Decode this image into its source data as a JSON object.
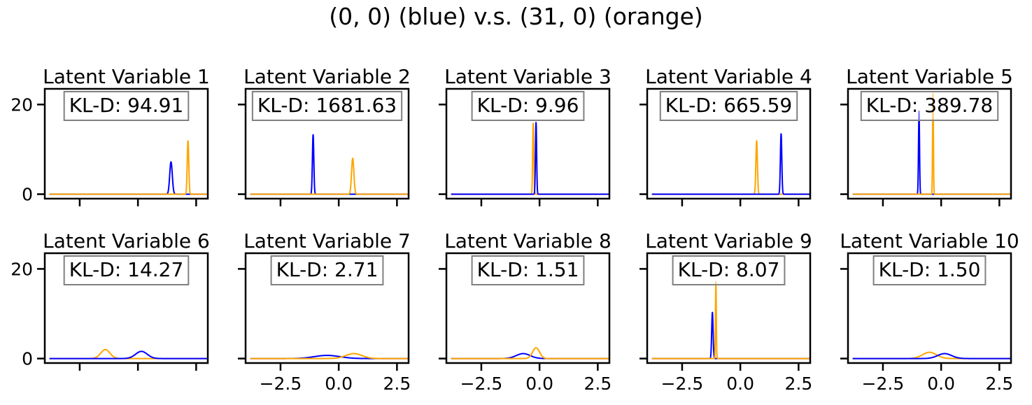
{
  "figure": {
    "title": "(0, 0) (blue) v.s. (31, 0) (orange)",
    "colors": {
      "blue": "#0000ff",
      "orange": "#ffa500"
    }
  },
  "chart_data": [
    {
      "type": "line",
      "title": "Latent Variable 1",
      "annotation": "KL-D: 94.91",
      "xlim": [
        -4,
        3
      ],
      "ylim": [
        -1,
        23.5
      ],
      "xticks": [
        -2.5,
        0.0,
        2.5
      ],
      "xticklabels": [
        "",
        "",
        ""
      ],
      "yticks": [
        0,
        20
      ],
      "yticklabels": [
        "0",
        "20"
      ],
      "series": [
        {
          "color": "#0000ff",
          "gaussian": {
            "mu": 1.42,
            "sigma": 0.055,
            "peak": 7.2
          }
        },
        {
          "color": "#ffa500",
          "gaussian": {
            "mu": 2.15,
            "sigma": 0.033,
            "peak": 11.9
          }
        }
      ]
    },
    {
      "type": "line",
      "title": "Latent Variable 2",
      "annotation": "KL-D: 1681.63",
      "xlim": [
        -4,
        3
      ],
      "ylim": [
        -1,
        23.5
      ],
      "xticks": [
        -2.5,
        0.0,
        2.5
      ],
      "xticklabels": [
        "",
        "",
        ""
      ],
      "yticks": [
        0,
        20
      ],
      "yticklabels": [
        "",
        ""
      ],
      "series": [
        {
          "color": "#0000ff",
          "gaussian": {
            "mu": -1.1,
            "sigma": 0.03,
            "peak": 13.3
          }
        },
        {
          "color": "#ffa500",
          "gaussian": {
            "mu": 0.6,
            "sigma": 0.05,
            "peak": 8.0
          }
        }
      ]
    },
    {
      "type": "line",
      "title": "Latent Variable 3",
      "annotation": "KL-D: 9.96",
      "xlim": [
        -4,
        3
      ],
      "ylim": [
        -1,
        23.5
      ],
      "xticks": [
        -2.5,
        0.0,
        2.5
      ],
      "xticklabels": [
        "",
        "",
        ""
      ],
      "yticks": [
        0,
        20
      ],
      "yticklabels": [
        "",
        ""
      ],
      "series": [
        {
          "color": "#ffa500",
          "gaussian": {
            "mu": -0.27,
            "sigma": 0.025,
            "peak": 15.8
          }
        },
        {
          "color": "#0000ff",
          "gaussian": {
            "mu": -0.15,
            "sigma": 0.025,
            "peak": 16.0
          }
        }
      ]
    },
    {
      "type": "line",
      "title": "Latent Variable 4",
      "annotation": "KL-D: 665.59",
      "xlim": [
        -4,
        3
      ],
      "ylim": [
        -1,
        23.5
      ],
      "xticks": [
        -2.5,
        0.0,
        2.5
      ],
      "xticklabels": [
        "",
        "",
        ""
      ],
      "yticks": [
        0,
        20
      ],
      "yticklabels": [
        "",
        ""
      ],
      "series": [
        {
          "color": "#ffa500",
          "gaussian": {
            "mu": 0.7,
            "sigma": 0.033,
            "peak": 11.9
          }
        },
        {
          "color": "#0000ff",
          "gaussian": {
            "mu": 1.75,
            "sigma": 0.03,
            "peak": 13.5
          }
        }
      ]
    },
    {
      "type": "line",
      "title": "Latent Variable 5",
      "annotation": "KL-D: 389.78",
      "xlim": [
        -4,
        3
      ],
      "ylim": [
        -1,
        23.5
      ],
      "xticks": [
        -2.5,
        0.0,
        2.5
      ],
      "xticklabels": [
        "",
        "",
        ""
      ],
      "yticks": [
        0,
        20
      ],
      "yticklabels": [
        "",
        ""
      ],
      "series": [
        {
          "color": "#0000ff",
          "gaussian": {
            "mu": -0.95,
            "sigma": 0.022,
            "peak": 18.5
          }
        },
        {
          "color": "#ffa500",
          "gaussian": {
            "mu": -0.35,
            "sigma": 0.018,
            "peak": 22.5
          }
        }
      ]
    },
    {
      "type": "line",
      "title": "Latent Variable 6",
      "annotation": "KL-D: 14.27",
      "xlim": [
        -4,
        3
      ],
      "ylim": [
        -1,
        23.5
      ],
      "xticks": [
        -2.5,
        0.0,
        2.5
      ],
      "xticklabels": [
        "",
        "",
        ""
      ],
      "yticks": [
        0,
        20
      ],
      "yticklabels": [
        "0",
        "20"
      ],
      "series": [
        {
          "color": "#ffa500",
          "gaussian": {
            "mu": -1.4,
            "sigma": 0.2,
            "peak": 2.0
          }
        },
        {
          "color": "#0000ff",
          "gaussian": {
            "mu": 0.15,
            "sigma": 0.25,
            "peak": 1.6
          }
        }
      ]
    },
    {
      "type": "line",
      "title": "Latent Variable 7",
      "annotation": "KL-D: 2.71",
      "xlim": [
        -4,
        3
      ],
      "ylim": [
        -1,
        23.5
      ],
      "xticks": [
        -2.5,
        0.0,
        2.5
      ],
      "xticklabels": [
        "−2.5",
        "0.0",
        "2.5"
      ],
      "yticks": [
        0,
        20
      ],
      "yticklabels": [
        "",
        ""
      ],
      "series": [
        {
          "color": "#0000ff",
          "gaussian": {
            "mu": -0.5,
            "sigma": 0.55,
            "peak": 0.7
          }
        },
        {
          "color": "#ffa500",
          "gaussian": {
            "mu": 0.65,
            "sigma": 0.35,
            "peak": 1.1
          }
        }
      ]
    },
    {
      "type": "line",
      "title": "Latent Variable 8",
      "annotation": "KL-D: 1.51",
      "xlim": [
        -4,
        3
      ],
      "ylim": [
        -1,
        23.5
      ],
      "xticks": [
        -2.5,
        0.0,
        2.5
      ],
      "xticklabels": [
        "−2.5",
        "0.0",
        "2.5"
      ],
      "yticks": [
        0,
        20
      ],
      "yticklabels": [
        "",
        ""
      ],
      "series": [
        {
          "color": "#0000ff",
          "gaussian": {
            "mu": -0.7,
            "sigma": 0.3,
            "peak": 1.1
          }
        },
        {
          "color": "#ffa500",
          "gaussian": {
            "mu": -0.15,
            "sigma": 0.15,
            "peak": 2.4
          }
        }
      ]
    },
    {
      "type": "line",
      "title": "Latent Variable 9",
      "annotation": "KL-D: 8.07",
      "xlim": [
        -4,
        3
      ],
      "ylim": [
        -1,
        23.5
      ],
      "xticks": [
        -2.5,
        0.0,
        2.5
      ],
      "xticklabels": [
        "−2.5",
        "0.0",
        "2.5"
      ],
      "yticks": [
        0,
        20
      ],
      "yticklabels": [
        "",
        ""
      ],
      "series": [
        {
          "color": "#0000ff",
          "gaussian": {
            "mu": -1.2,
            "sigma": 0.03,
            "peak": 10.3
          }
        },
        {
          "color": "#ffa500",
          "gaussian": {
            "mu": -1.05,
            "sigma": 0.018,
            "peak": 17.2
          }
        }
      ]
    },
    {
      "type": "line",
      "title": "Latent Variable 10",
      "annotation": "KL-D: 1.50",
      "xlim": [
        -4,
        3
      ],
      "ylim": [
        -1,
        23.5
      ],
      "xticks": [
        -2.5,
        0.0,
        2.5
      ],
      "xticklabels": [
        "−2.5",
        "0.0",
        "2.5"
      ],
      "yticks": [
        0,
        20
      ],
      "yticklabels": [
        "",
        ""
      ],
      "series": [
        {
          "color": "#ffa500",
          "gaussian": {
            "mu": -0.5,
            "sigma": 0.3,
            "peak": 1.4
          }
        },
        {
          "color": "#0000ff",
          "gaussian": {
            "mu": 0.15,
            "sigma": 0.3,
            "peak": 1.1
          }
        }
      ]
    }
  ]
}
